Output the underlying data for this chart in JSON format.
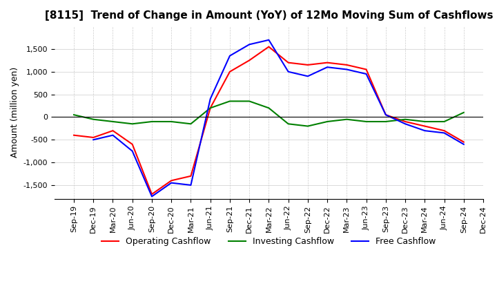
{
  "title": "[8115]  Trend of Change in Amount (YoY) of 12Mo Moving Sum of Cashflows",
  "ylabel": "Amount (million yen)",
  "x_labels": [
    "Sep-19",
    "Dec-19",
    "Mar-20",
    "Jun-20",
    "Sep-20",
    "Dec-20",
    "Mar-21",
    "Jun-21",
    "Sep-21",
    "Dec-21",
    "Mar-22",
    "Jun-22",
    "Sep-22",
    "Dec-22",
    "Mar-23",
    "Jun-23",
    "Sep-23",
    "Dec-23",
    "Mar-24",
    "Jun-24",
    "Sep-24",
    "Dec-24"
  ],
  "operating": [
    -400,
    -450,
    -300,
    -600,
    -1700,
    -1400,
    -1300,
    200,
    1000,
    1250,
    1550,
    1200,
    1150,
    1200,
    1150,
    1050,
    50,
    -100,
    -200,
    -300,
    -550,
    null
  ],
  "investing": [
    50,
    -50,
    -100,
    -150,
    -100,
    -100,
    -150,
    200,
    350,
    350,
    200,
    -150,
    -200,
    -100,
    -50,
    -100,
    -100,
    -50,
    -100,
    -100,
    100,
    null
  ],
  "free": [
    null,
    -500,
    -400,
    -750,
    -1750,
    -1450,
    -1500,
    400,
    1350,
    1600,
    1700,
    1000,
    900,
    1100,
    1050,
    950,
    50,
    -150,
    -300,
    -350,
    -600,
    null
  ],
  "ylim": [
    -1800,
    2000
  ],
  "yticks": [
    -1500,
    -1000,
    -500,
    0,
    500,
    1000,
    1500
  ],
  "operating_color": "#ff0000",
  "investing_color": "#008000",
  "free_color": "#0000ff",
  "background_color": "#ffffff",
  "grid_color": "#cccccc"
}
